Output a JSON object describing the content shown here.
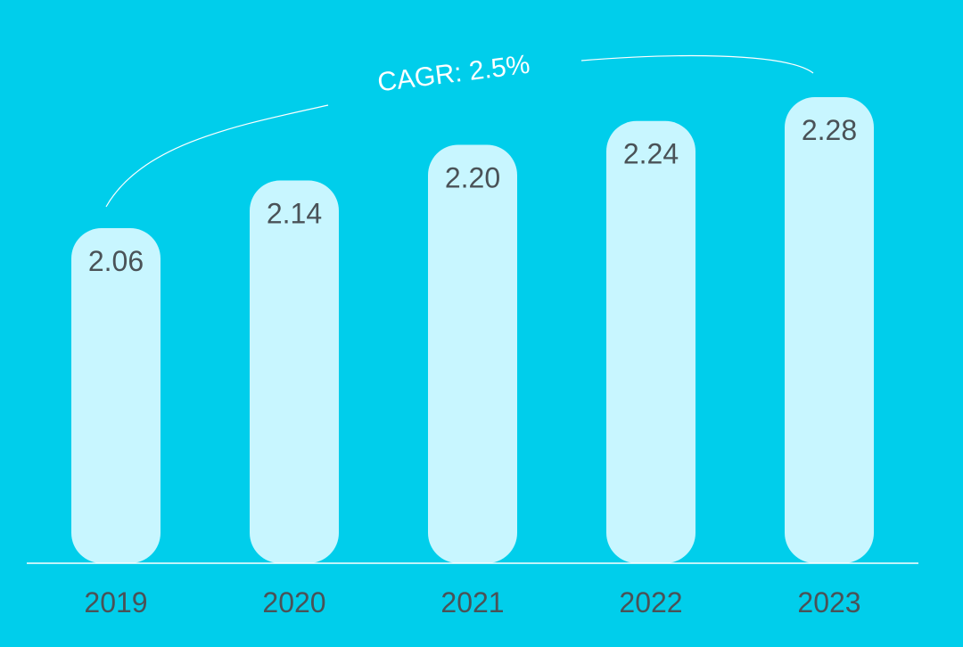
{
  "colors": {
    "background": "#00CEEB",
    "bar": "#C8F6FF",
    "axis": "#FFFFFF",
    "text": "#4A5257",
    "annotation": "#FFFFFF"
  },
  "annotation": {
    "cagr_label": "CAGR: 2.5%"
  },
  "chart_data": {
    "type": "bar",
    "categories": [
      "2019",
      "2020",
      "2021",
      "2022",
      "2023"
    ],
    "values": [
      2.06,
      2.14,
      2.2,
      2.24,
      2.28
    ],
    "value_labels": [
      "2.06",
      "2.14",
      "2.20",
      "2.24",
      "2.28"
    ],
    "title": "",
    "xlabel": "",
    "ylabel": "",
    "grid": false,
    "legend": "none"
  }
}
